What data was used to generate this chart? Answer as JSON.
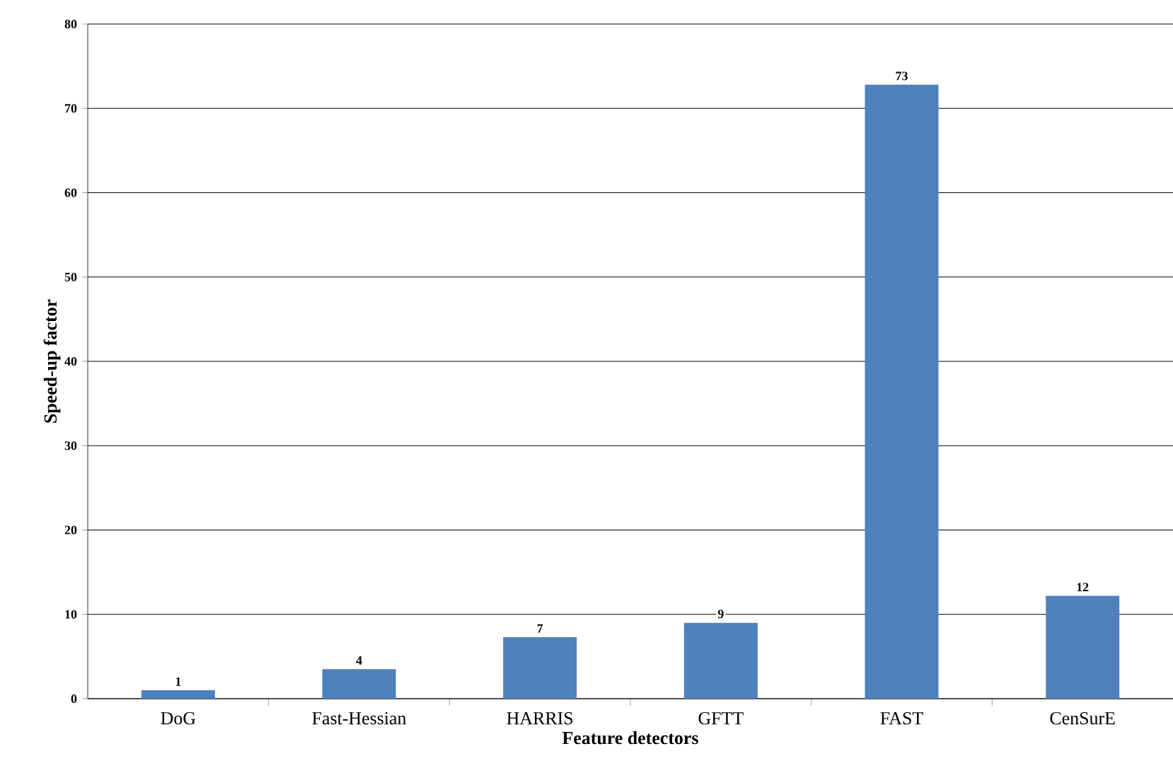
{
  "chart_data": {
    "type": "bar",
    "xlabel": "Feature detectors",
    "ylabel": "Speed-up factor",
    "categories": [
      "DoG",
      "Fast-Hessian",
      "HARRIS",
      "GFTT",
      "FAST",
      "CenSurE"
    ],
    "values": [
      1,
      3.5,
      7.3,
      9,
      72.8,
      12.2
    ],
    "value_labels": [
      "1",
      "4",
      "7",
      "9",
      "73",
      "12"
    ],
    "color": "#4f81bd",
    "ylim": [
      0,
      80
    ],
    "yticks": [
      0,
      10,
      20,
      30,
      40,
      50,
      60,
      70,
      80
    ],
    "grid": "y"
  }
}
